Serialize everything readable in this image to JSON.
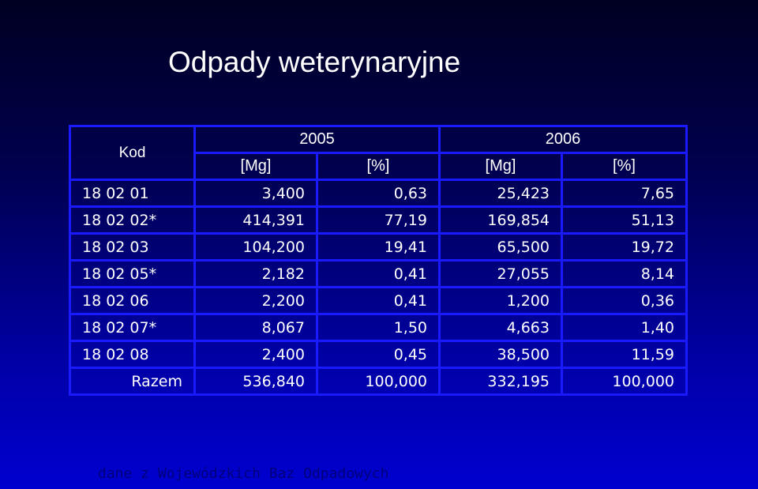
{
  "title": "Odpady weterynaryjne",
  "table": {
    "code_header": "Kod",
    "year_2005": "2005",
    "year_2006": "2006",
    "unit_mg": "[Mg]",
    "unit_pct": "[%]",
    "rows": [
      {
        "code": "18 02 01",
        "mg_2005": "3,400",
        "pct_2005": "0,63",
        "mg_2006": "25,423",
        "pct_2006": "7,65"
      },
      {
        "code": "18 02 02*",
        "mg_2005": "414,391",
        "pct_2005": "77,19",
        "mg_2006": "169,854",
        "pct_2006": "51,13"
      },
      {
        "code": "18 02 03",
        "mg_2005": "104,200",
        "pct_2005": "19,41",
        "mg_2006": "65,500",
        "pct_2006": "19,72"
      },
      {
        "code": "18 02 05*",
        "mg_2005": "2,182",
        "pct_2005": "0,41",
        "mg_2006": "27,055",
        "pct_2006": "8,14"
      },
      {
        "code": "18 02 06",
        "mg_2005": "2,200",
        "pct_2005": "0,41",
        "mg_2006": "1,200",
        "pct_2006": "0,36"
      },
      {
        "code": "18 02 07*",
        "mg_2005": "8,067",
        "pct_2005": "1,50",
        "mg_2006": "4,663",
        "pct_2006": "1,40"
      },
      {
        "code": "18 02 08",
        "mg_2005": "2,400",
        "pct_2005": "0,45",
        "mg_2006": "38,500",
        "pct_2006": "11,59"
      }
    ],
    "total": {
      "label": "Razem",
      "mg_2005": "536,840",
      "pct_2005": "100,000",
      "mg_2006": "332,195",
      "pct_2006": "100,000"
    }
  },
  "source_note": "dane z Wojewódzkich Baz Odpadowych",
  "colors": {
    "background_top": "#000022",
    "background_bottom": "#0000d0",
    "grid_lines": "#1a1aff",
    "text": "#ffffff",
    "source_note": "#00007a"
  }
}
